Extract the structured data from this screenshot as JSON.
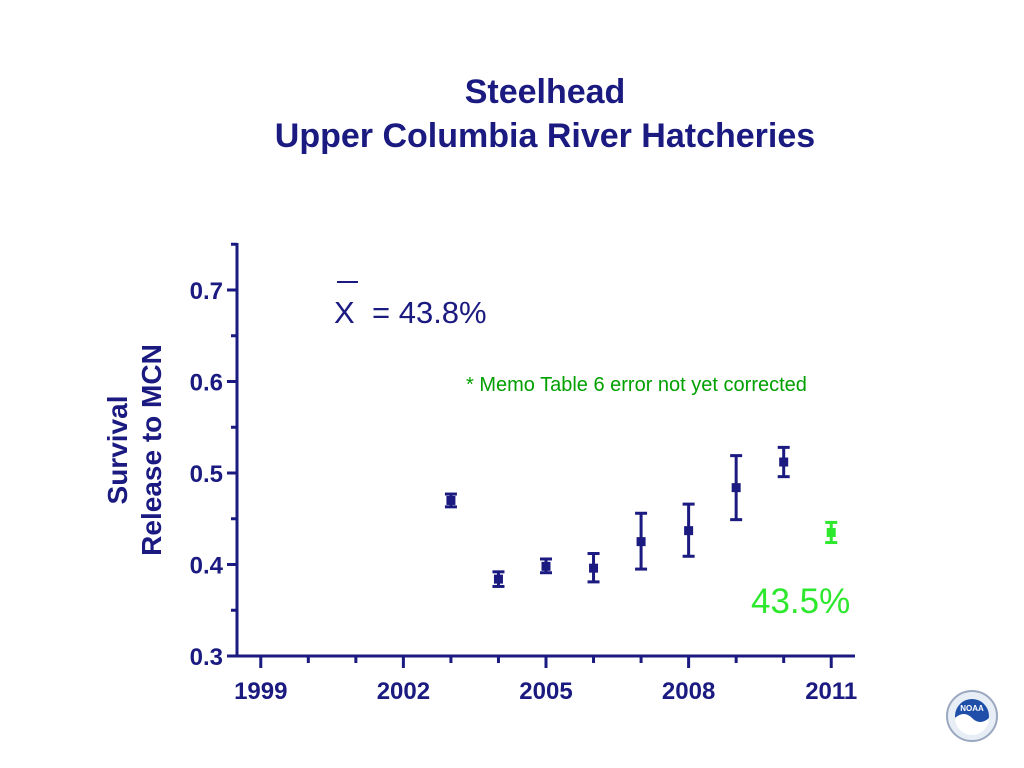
{
  "slide": {
    "title_line1": "Steelhead",
    "title_line2": "Upper  Columbia River Hatcheries"
  },
  "chart_data": {
    "type": "scatter",
    "title": "Steelhead Upper Columbia River Hatcheries",
    "ylabel_line1": "Survival",
    "ylabel_line2": "Release to MCN",
    "xlabel": "",
    "xlim": [
      1998.5,
      2011.5
    ],
    "ylim": [
      0.3,
      0.75
    ],
    "x_tick_labels": [
      "1999",
      "2002",
      "2005",
      "2008",
      "2011"
    ],
    "x_tick_values": [
      1999,
      2002,
      2005,
      2008,
      2011
    ],
    "y_tick_labels": [
      "0.3",
      "0.4",
      "0.5",
      "0.6",
      "0.7"
    ],
    "y_tick_values": [
      0.3,
      0.4,
      0.5,
      0.6,
      0.7
    ],
    "series": [
      {
        "color": "#1a1a80",
        "points": [
          {
            "x": 2003,
            "y": 0.47,
            "lo": 0.463,
            "hi": 0.477
          },
          {
            "x": 2004,
            "y": 0.384,
            "lo": 0.376,
            "hi": 0.392
          },
          {
            "x": 2005,
            "y": 0.398,
            "lo": 0.391,
            "hi": 0.406
          },
          {
            "x": 2006,
            "y": 0.396,
            "lo": 0.381,
            "hi": 0.412
          },
          {
            "x": 2007,
            "y": 0.425,
            "lo": 0.395,
            "hi": 0.456
          },
          {
            "x": 2008,
            "y": 0.437,
            "lo": 0.409,
            "hi": 0.466
          },
          {
            "x": 2009,
            "y": 0.484,
            "lo": 0.449,
            "hi": 0.519
          },
          {
            "x": 2010,
            "y": 0.512,
            "lo": 0.496,
            "hi": 0.528
          }
        ]
      },
      {
        "color": "#2ee82e",
        "points": [
          {
            "x": 2011,
            "y": 0.435,
            "lo": 0.424,
            "hi": 0.446
          }
        ]
      }
    ],
    "annotations": {
      "mean_symbol": "X",
      "mean_text": "= 43.8%",
      "memo": "* Memo Table 6 error not yet corrected",
      "highlight_value": "43.5%"
    }
  },
  "colors": {
    "axis": "#1a1a80",
    "highlight": "#2ee82e",
    "memo": "#00a000"
  },
  "logo": {
    "icon": "noaa-logo-icon",
    "text": "NOAA"
  }
}
